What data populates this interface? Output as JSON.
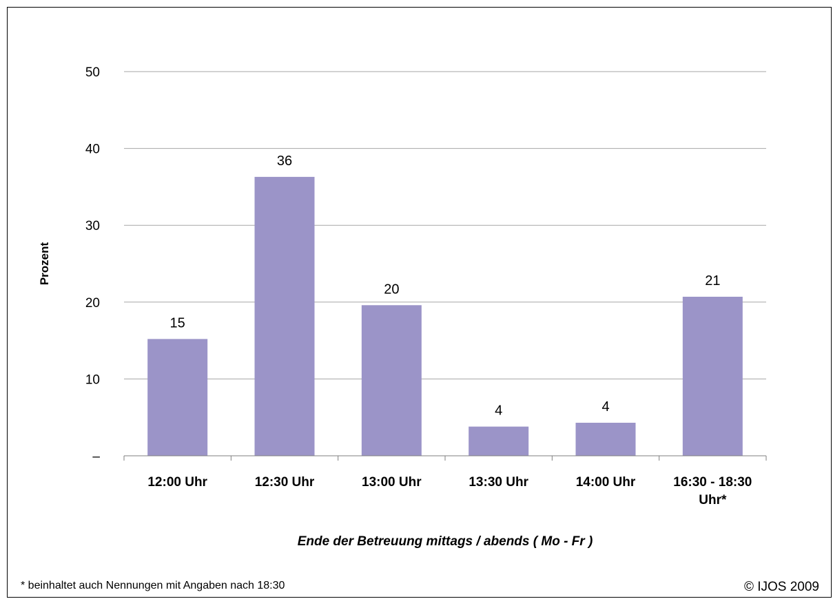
{
  "chart_data": {
    "type": "bar",
    "categories": [
      "12:00 Uhr",
      "12:30 Uhr",
      "13:00 Uhr",
      "13:30 Uhr",
      "14:00 Uhr",
      "16:30 - 18:30 Uhr*"
    ],
    "values": [
      15.2,
      36.3,
      19.6,
      3.8,
      4.3,
      20.7
    ],
    "data_labels": [
      "15",
      "36",
      "20",
      "4",
      "4",
      "21"
    ],
    "xlabel": "Ende der Betreuung mittags / abends ( Mo - Fr )",
    "ylabel": "Prozent",
    "ylim": [
      0,
      50
    ],
    "yticks": [
      0,
      10,
      20,
      30,
      40,
      50
    ],
    "ytick_labels": [
      "–",
      "10",
      "20",
      "30",
      "40",
      "50"
    ],
    "grid": true,
    "bar_color": "#9b94c8"
  },
  "footer": {
    "note": "* beinhaltet auch Nennungen mit Angaben nach 18:30",
    "copyright": "© IJOS 2009"
  }
}
